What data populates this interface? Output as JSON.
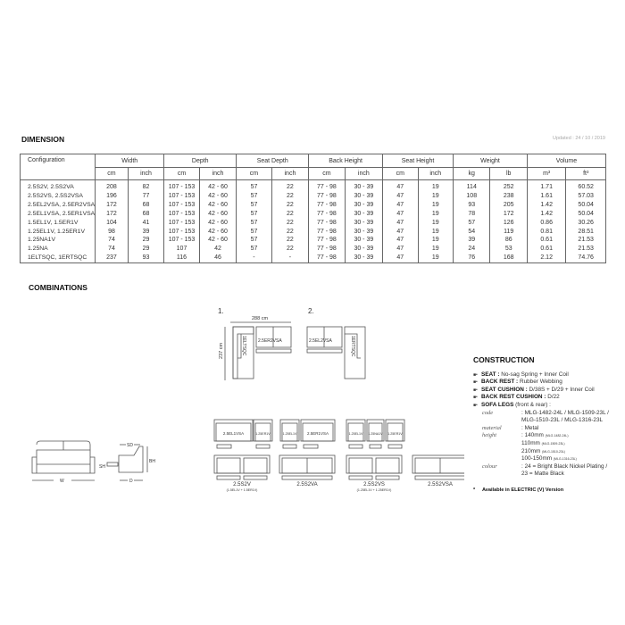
{
  "dimension": {
    "title": "DIMENSION",
    "updated": "Updated : 24 / 10 / 2019",
    "headers": [
      "Configuration",
      "Width",
      "Depth",
      "Seat Depth",
      "Back Height",
      "Seat Height",
      "Weight",
      "Volume"
    ],
    "units": [
      "cm",
      "inch",
      "cm",
      "inch",
      "cm",
      "inch",
      "cm",
      "inch",
      "cm",
      "inch",
      "kg",
      "lb",
      "m³",
      "ft³"
    ],
    "rows": [
      [
        "2.5S2V, 2.5S2VA",
        "208",
        "82",
        "107 - 153",
        "42 - 60",
        "57",
        "22",
        "77 - 98",
        "30 - 39",
        "47",
        "19",
        "114",
        "252",
        "1.71",
        "60.52"
      ],
      [
        "2.5S2VS, 2.5S2VSA",
        "196",
        "77",
        "107 - 153",
        "42 - 60",
        "57",
        "22",
        "77 - 98",
        "30 - 39",
        "47",
        "19",
        "108",
        "238",
        "1.61",
        "57.03"
      ],
      [
        "2.5EL2VSA, 2.5ER2VSA",
        "172",
        "68",
        "107 - 153",
        "42 - 60",
        "57",
        "22",
        "77 - 98",
        "30 - 39",
        "47",
        "19",
        "93",
        "205",
        "1.42",
        "50.04"
      ],
      [
        "2.5EL1VSA, 2.5ER1VSA",
        "172",
        "68",
        "107 - 153",
        "42 - 60",
        "57",
        "22",
        "77 - 98",
        "30 - 39",
        "47",
        "19",
        "78",
        "172",
        "1.42",
        "50.04"
      ],
      [
        "1.5EL1V, 1.5ER1V",
        "104",
        "41",
        "107 - 153",
        "42 - 60",
        "57",
        "22",
        "77 - 98",
        "30 - 39",
        "47",
        "19",
        "57",
        "126",
        "0.86",
        "30.26"
      ],
      [
        "1.25EL1V, 1.25ER1V",
        "98",
        "39",
        "107 - 153",
        "42 - 60",
        "57",
        "22",
        "77 - 98",
        "30 - 39",
        "47",
        "19",
        "54",
        "119",
        "0.81",
        "28.51"
      ],
      [
        "1.25NA1V",
        "74",
        "29",
        "107 - 153",
        "42 - 60",
        "57",
        "22",
        "77 - 98",
        "30 - 39",
        "47",
        "19",
        "39",
        "86",
        "0.61",
        "21.53"
      ],
      [
        "1.25NA",
        "74",
        "29",
        "107",
        "42",
        "57",
        "22",
        "77 - 98",
        "30 - 39",
        "47",
        "19",
        "24",
        "53",
        "0.61",
        "21.53"
      ],
      [
        "1ELTSQC, 1ERTSQC",
        "237",
        "93",
        "116",
        "46",
        "-",
        "-",
        "77 - 98",
        "30 - 39",
        "47",
        "19",
        "76",
        "168",
        "2.12",
        "74.76"
      ]
    ]
  },
  "combinations": {
    "title": "COMBINATIONS",
    "c1": {
      "num": "1.",
      "width": "288 cm",
      "depth": "237 cm",
      "corner": "1ELTSQC",
      "sofa": "2.5ER2VSA"
    },
    "c2": {
      "num": "2.",
      "corner": "1ERTSQC",
      "sofa": "2.5EL2VSA"
    },
    "row3": [
      "2.5EL1VSA",
      "1.25ER1V",
      "1.25EL1V",
      "2.5ER1VSA",
      "1.25EL1V",
      "1.25NA1V",
      "1.25ER1V"
    ],
    "row4": [
      {
        "label": "2.5S2V",
        "sub": "(1.5EL1V + 1.5ER1V)"
      },
      {
        "label": "2.5S2VA",
        "sub": ""
      },
      {
        "label": "2.5S2VS",
        "sub": "(1.25EL1V + 1.25ER1V)"
      },
      {
        "label": "2.5S2VSA",
        "sub": ""
      }
    ],
    "dims": {
      "w": "W",
      "sh": "SH",
      "sd": "SD",
      "d": "D",
      "bh": "BH"
    }
  },
  "construction": {
    "title": "CONSTRUCTION",
    "items": [
      {
        "k": "SEAT :",
        "v": " No-sag Spring + Inner Coil"
      },
      {
        "k": "BACK REST :",
        "v": " Rubber Webbing"
      },
      {
        "k": "SEAT CUSHION :",
        "v": " D/38S + D/29 + Inner Coil"
      },
      {
        "k": "BACK REST CUSHION :",
        "v": " D/22"
      },
      {
        "k": "SOFA LEGS",
        "v": " (front & rear) :"
      }
    ],
    "code_label": "code",
    "code": [
      "MLG-1482-24L / MLG-1509-23L /",
      "MLG-1510-23L / MLG-1316-23L"
    ],
    "material_label": "material",
    "material": "Metal",
    "height_label": "height",
    "heights": [
      [
        "140mm",
        "(MLG-1482-24L)"
      ],
      [
        "110mm",
        "(MLG-1509-23L)"
      ],
      [
        "210mm",
        "(MLG-1510-23L)"
      ],
      [
        "100-150mm",
        "(MLG-1316-23L)"
      ]
    ],
    "colour_label": "colour",
    "colour": [
      "24 = Bright Black Nickel Plating /",
      "23 = Matte Black"
    ],
    "note": "Available in ELECTRIC (V) Version"
  }
}
